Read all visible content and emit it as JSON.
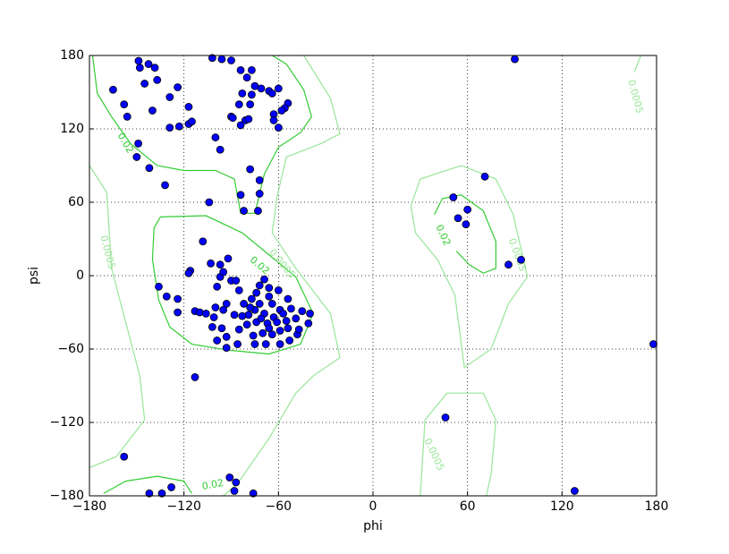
{
  "chart_data": {
    "type": "scatter",
    "x_label": "phi",
    "y_label": "psi",
    "xlim": [
      -180,
      180
    ],
    "ylim": [
      -180,
      180
    ],
    "xticks": [
      {
        "value": -180,
        "label": "−180"
      },
      {
        "value": -120,
        "label": "−120"
      },
      {
        "value": -60,
        "label": "−60"
      },
      0,
      60,
      120,
      180
    ],
    "yticks": [
      {
        "value": -180,
        "label": "−180"
      },
      {
        "value": -120,
        "label": "−120"
      },
      {
        "value": -60,
        "label": "−60"
      },
      0,
      60,
      120,
      180
    ],
    "grid": true,
    "color": "#0000ff",
    "x": [
      -148.8,
      -148,
      -142.5,
      -138.5,
      -145,
      -137,
      -165,
      -158,
      -156,
      -140,
      -129,
      -124,
      -117,
      -117,
      -115,
      -123,
      -129,
      -149,
      -150,
      -142,
      -132,
      -102,
      -96,
      -90,
      -77,
      -84,
      -80,
      -75,
      -71,
      -66,
      -60,
      -83,
      -77,
      -64,
      -78,
      -85,
      -54,
      -56,
      -58,
      -63,
      -90,
      -89,
      -81,
      -63,
      -84,
      -79,
      -60,
      -100,
      -97,
      -78,
      -72,
      -72,
      -84,
      -82,
      -73,
      -104,
      -108,
      -116,
      -117,
      -103,
      -97,
      -92,
      -97,
      -99,
      -90,
      -87,
      -95,
      -136,
      -131,
      -124,
      -124,
      -113,
      -110,
      -106,
      -100,
      -101,
      -93,
      -95,
      -85,
      -82,
      -77,
      -72,
      -69,
      -66,
      -60,
      -54,
      -45,
      -40,
      -41,
      -102,
      -96,
      -99,
      -93,
      -93,
      -86,
      -85,
      -80,
      -75,
      -68,
      -59,
      -53,
      -48,
      -47,
      -54,
      -76,
      -70,
      -64,
      -59,
      -55,
      -49,
      -63,
      -69,
      -75,
      -79,
      -83,
      -88,
      -74,
      -67,
      -59,
      -64,
      -66,
      -74,
      -61,
      -57,
      -52,
      -72,
      -78,
      -71,
      -66,
      -113,
      90,
      71,
      51,
      54,
      60,
      59,
      86,
      94,
      46,
      128,
      178,
      -158,
      -91,
      -87,
      -88,
      -76,
      -142,
      -134,
      -128
    ],
    "values": [
      175.6,
      170,
      173,
      170,
      157,
      160,
      152,
      140,
      130,
      135,
      146,
      154,
      138,
      124,
      126,
      122,
      121,
      108,
      97,
      88,
      74,
      178,
      177,
      176,
      168,
      168,
      162,
      155,
      153,
      151,
      153,
      149,
      148,
      149,
      140,
      140,
      141,
      137,
      135,
      132,
      130,
      129,
      127,
      127,
      123,
      128,
      121,
      113,
      103,
      87,
      78,
      67,
      66,
      53,
      53,
      60,
      28,
      4,
      2,
      10,
      9,
      14,
      -1,
      -9,
      -4,
      -4,
      3,
      -9,
      -17,
      -19,
      -30,
      -29,
      -30,
      -31,
      -26,
      -34,
      -23,
      -28,
      -12,
      -23,
      -19,
      -8,
      -3,
      -10,
      -12,
      -19,
      -29,
      -31,
      -39,
      -42,
      -43,
      -53,
      -50,
      -59,
      -56,
      -44,
      -40,
      -56,
      -56,
      -56,
      -53,
      -48,
      -44,
      -43,
      -49,
      -47,
      -48,
      -45,
      -37,
      -35,
      -34,
      -31,
      -28,
      -32,
      -33,
      -32,
      -38,
      -39,
      -28,
      -23,
      -17,
      -14,
      -38,
      -31,
      -27,
      -23,
      -26,
      -35,
      -43,
      -83,
      177,
      81,
      64,
      47,
      54,
      42,
      9,
      13,
      -116,
      -176,
      -56,
      -148,
      -165,
      -169,
      -176,
      -178,
      -178,
      -178,
      -173
    ],
    "contours": [
      {
        "label": "0.02",
        "color": "#33cc33",
        "lines": [
          {
            "x": [
              -178,
              -175,
              -166,
              -154,
              -137,
              -120,
              -100,
              -88,
              -84,
              -75,
              -69,
              -60,
              -46,
              -39,
              -44,
              -55,
              -64
            ],
            "y": [
              180,
              149,
              130,
              108,
              90,
              86,
              86,
              79,
              51,
              51,
              83,
              105,
              117,
              130,
              152,
              173,
              180
            ]
          },
          {
            "x": [
              -135,
              -106,
              -83,
              -66,
              -49,
              -38,
              -46,
              -66,
              -91,
              -115,
              -129,
              -136,
              -140,
              -139,
              -135
            ],
            "y": [
              48,
              49,
              35,
              17,
              -1,
              -31,
              -56,
              -64,
              -61,
              -56,
              -42,
              -20,
              13,
              39,
              48
            ]
          },
          {
            "x": [
              39,
              44,
              56,
              70,
              78,
              78,
              70,
              61,
              53
            ],
            "y": [
              50,
              63,
              66,
              53,
              28,
              6,
              2,
              9,
              20
            ]
          },
          {
            "x": [
              -171,
              -157,
              -137,
              -120,
              -115
            ],
            "y": [
              -178,
              -168,
              -164,
              -168,
              -178
            ]
          }
        ]
      },
      {
        "label": "0.0005",
        "color": "#99e699",
        "lines": [
          {
            "x": [
              -180,
              -169,
              -166,
              -157,
              -148,
              -145,
              -163,
              -180
            ],
            "y": [
              90,
              68,
              6,
              -38,
              -82,
              -118,
              -148,
              -157
            ]
          },
          {
            "x": [
              -44,
              -27,
              -21,
              -33,
              -55,
              -61,
              -64,
              -49,
              -27,
              -21,
              -38,
              -49,
              -66,
              -86,
              -95
            ],
            "y": [
              180,
              145,
              116,
              108,
              97,
              64,
              35,
              6,
              -31,
              -67,
              -82,
              -96,
              -133,
              -170,
              -180
            ]
          },
          {
            "x": [
              24,
              30,
              56,
              78,
              89,
              98,
              86,
              75,
              58,
              52,
              41,
              27,
              24
            ],
            "y": [
              57,
              79,
              90,
              79,
              50,
              -1,
              -23,
              -60,
              -75,
              -16,
              13,
              35,
              57
            ]
          },
          {
            "x": [
              30,
              33,
              47,
              70,
              78,
              75,
              72
            ],
            "y": [
              -180,
              -118,
              -96,
              -96,
              -118,
              -162,
              -180
            ]
          },
          {
            "x": [
              166,
              170
            ],
            "y": [
              167,
              180
            ]
          }
        ]
      }
    ]
  }
}
